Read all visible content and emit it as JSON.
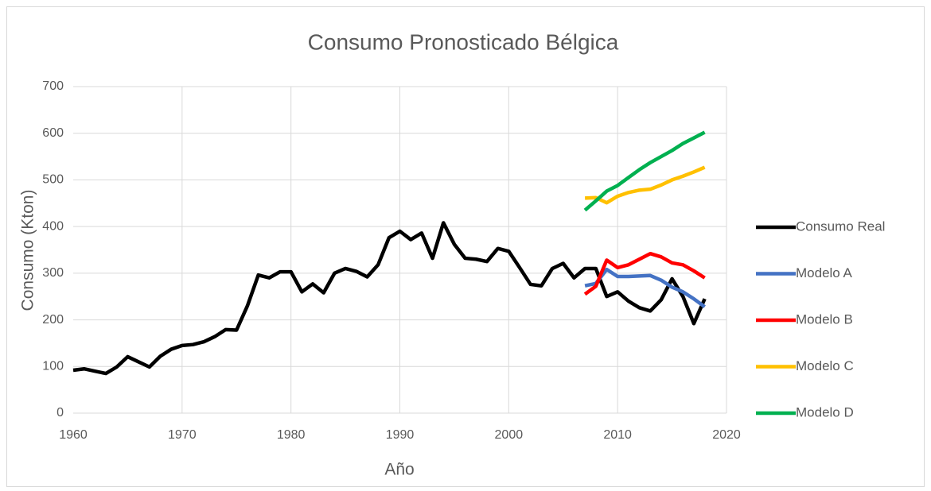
{
  "chart_data": {
    "type": "line",
    "title": "Consumo Pronosticado Bélgica",
    "x_label": "Año",
    "y_label": "Consumo (Kton)",
    "xlim": [
      1960,
      2020
    ],
    "xticks": [
      1960,
      1970,
      1980,
      1990,
      2000,
      2010,
      2020
    ],
    "ylim": [
      0,
      700
    ],
    "yticks": [
      0,
      100,
      200,
      300,
      400,
      500,
      600,
      700
    ],
    "grid": true,
    "legend": "right",
    "series": [
      {
        "name": "Consumo Real",
        "color": "#000000",
        "x": [
          1960,
          1961,
          1962,
          1963,
          1964,
          1965,
          1966,
          1967,
          1968,
          1969,
          1970,
          1971,
          1972,
          1973,
          1974,
          1975,
          1976,
          1977,
          1978,
          1979,
          1980,
          1981,
          1982,
          1983,
          1984,
          1985,
          1986,
          1987,
          1988,
          1989,
          1990,
          1991,
          1992,
          1993,
          1994,
          1995,
          1996,
          1997,
          1998,
          1999,
          2000,
          2001,
          2002,
          2003,
          2004,
          2005,
          2006,
          2007,
          2008,
          2009,
          2010,
          2011,
          2012,
          2013,
          2014,
          2015,
          2016,
          2017,
          2018
        ],
        "values": [
          92,
          95,
          90,
          85,
          99,
          121,
          110,
          99,
          122,
          137,
          145,
          147,
          153,
          164,
          179,
          178,
          230,
          296,
          290,
          303,
          303,
          260,
          277,
          258,
          300,
          310,
          304,
          292,
          318,
          376,
          390,
          372,
          386,
          332,
          408,
          362,
          332,
          330,
          325,
          353,
          347,
          312,
          276,
          273,
          310,
          321,
          290,
          310,
          310,
          250,
          260,
          240,
          226,
          219,
          243,
          288,
          250,
          192,
          245
        ]
      },
      {
        "name": "Modelo A",
        "color": "#4472c4",
        "x": [
          2007,
          2008,
          2009,
          2010,
          2011,
          2012,
          2013,
          2014,
          2015,
          2016,
          2017,
          2018
        ],
        "values": [
          273,
          278,
          308,
          293,
          293,
          294,
          295,
          285,
          270,
          260,
          245,
          228
        ]
      },
      {
        "name": "Modelo B",
        "color": "#ff0000",
        "x": [
          2007,
          2008,
          2009,
          2010,
          2011,
          2012,
          2013,
          2014,
          2015,
          2016,
          2017,
          2018
        ],
        "values": [
          255,
          272,
          328,
          312,
          318,
          330,
          342,
          335,
          322,
          318,
          305,
          290
        ]
      },
      {
        "name": "Modelo C",
        "color": "#ffc000",
        "x": [
          2007,
          2008,
          2009,
          2010,
          2011,
          2012,
          2013,
          2014,
          2015,
          2016,
          2017,
          2018
        ],
        "values": [
          461,
          462,
          451,
          465,
          473,
          478,
          480,
          489,
          500,
          508,
          517,
          527
        ]
      },
      {
        "name": "Modelo D",
        "color": "#00b050",
        "x": [
          2007,
          2008,
          2009,
          2010,
          2011,
          2012,
          2013,
          2014,
          2015,
          2016,
          2017,
          2018
        ],
        "values": [
          435,
          455,
          476,
          488,
          505,
          522,
          537,
          550,
          563,
          578,
          590,
          602
        ]
      }
    ]
  }
}
